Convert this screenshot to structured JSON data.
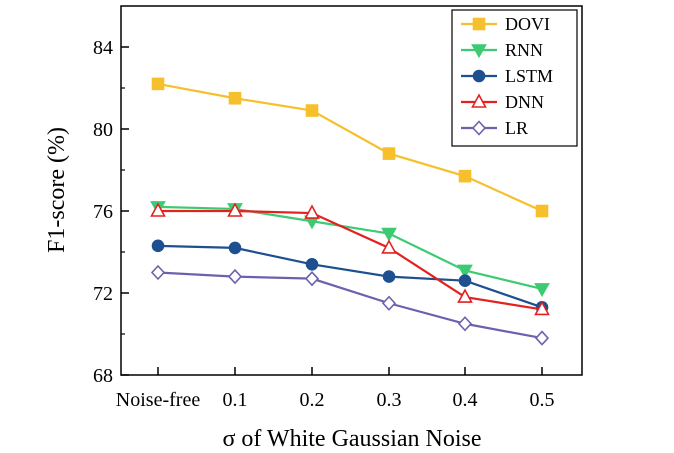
{
  "chart_data": {
    "type": "line",
    "categories": [
      "Noise-free",
      "0.1",
      "0.2",
      "0.3",
      "0.4",
      "0.5"
    ],
    "xlabel": "σ of White Gaussian Noise",
    "ylabel": "F1-score (%)",
    "ylim": [
      68,
      86
    ],
    "yticks": [
      68,
      72,
      76,
      80,
      84
    ],
    "grid": false,
    "legend_position": "top-right",
    "series": [
      {
        "name": "DOVI",
        "color": "#F5C02C",
        "marker": "square",
        "values": [
          82.2,
          81.5,
          80.9,
          78.8,
          77.7,
          76.0
        ]
      },
      {
        "name": "RNN",
        "color": "#3CCB72",
        "marker": "triangle-down",
        "values": [
          76.2,
          76.1,
          75.5,
          74.9,
          73.1,
          72.2
        ]
      },
      {
        "name": "LSTM",
        "color": "#1E4F8F",
        "marker": "circle",
        "values": [
          74.3,
          74.2,
          73.4,
          72.8,
          72.6,
          71.3
        ]
      },
      {
        "name": "DNN",
        "color": "#E32121",
        "marker": "triangle-up",
        "values": [
          76.0,
          76.0,
          75.9,
          74.2,
          71.8,
          71.2
        ]
      },
      {
        "name": "LR",
        "color": "#6B62AE",
        "marker": "diamond",
        "values": [
          73.0,
          72.8,
          72.7,
          71.5,
          70.5,
          69.8
        ]
      }
    ]
  }
}
